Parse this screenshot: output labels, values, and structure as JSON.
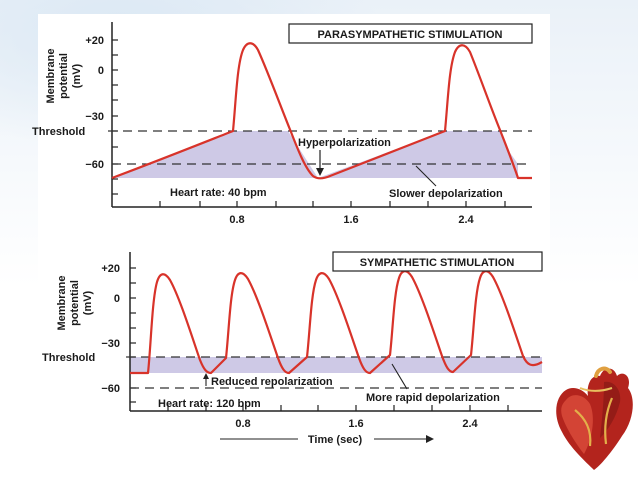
{
  "panels": [
    {
      "title": "PARASYMPATHETIC STIMULATION",
      "y_axis_label": [
        "Membrane",
        "potential",
        "(mV)"
      ],
      "y_ticks": [
        "+20",
        "0",
        "−30",
        "−60"
      ],
      "threshold_label": "Threshold",
      "x_ticks": [
        "0.8",
        "1.6",
        "2.4"
      ],
      "annotations": {
        "hyperpolarization": "Hyperpolarization",
        "heart_rate": "Heart rate: 40 bpm",
        "slower_depolarization": "Slower depolarization"
      }
    },
    {
      "title": "SYMPATHETIC STIMULATION",
      "y_axis_label": [
        "Membrane",
        "potential",
        "(mV)"
      ],
      "y_ticks": [
        "+20",
        "0",
        "−30",
        "−60"
      ],
      "threshold_label": "Threshold",
      "x_ticks": [
        "0.8",
        "1.6",
        "2.4"
      ],
      "x_axis_label": "Time (sec)",
      "annotations": {
        "reduced_repolarization": "Reduced repolarization",
        "heart_rate": "Heart rate: 120 bpm",
        "more_rapid_depolarization": "More rapid depolarization"
      }
    }
  ],
  "colors": {
    "trace": "#d8332a",
    "shading": "#c6bfe2",
    "axis": "#222222",
    "dashed": "#333333"
  },
  "decor": {
    "heart_image": "heart-illustration"
  }
}
